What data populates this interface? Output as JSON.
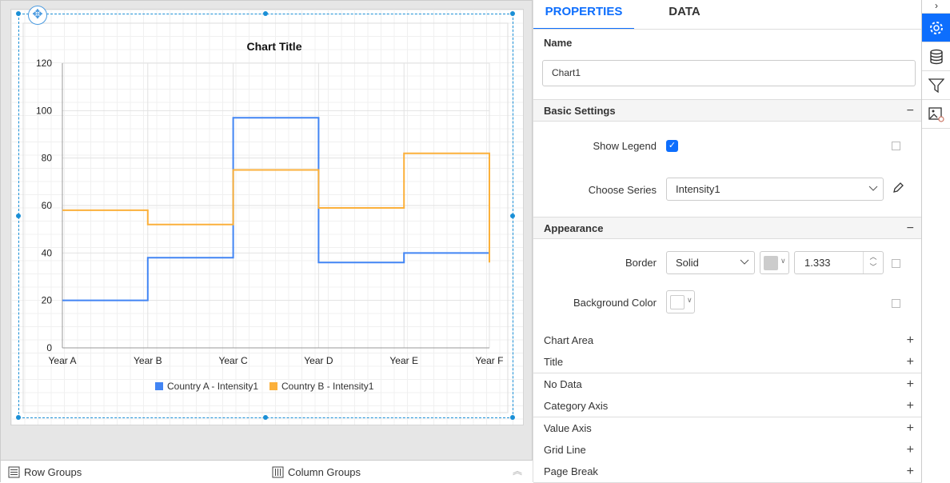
{
  "chart_data": {
    "type": "line",
    "step": true,
    "title": "Chart Title",
    "categories": [
      "Year A",
      "Year B",
      "Year C",
      "Year D",
      "Year E",
      "Year F"
    ],
    "series": [
      {
        "name": "Country A - Intensity1",
        "color": "#4285f4",
        "values": [
          20,
          38,
          97,
          36,
          40,
          40
        ]
      },
      {
        "name": "Country B - Intensity1",
        "color": "#fbb03b",
        "values": [
          58,
          52,
          75,
          59,
          82,
          36
        ]
      }
    ],
    "ylim": [
      0,
      120
    ],
    "yticks": [
      0,
      20,
      40,
      60,
      80,
      100,
      120
    ],
    "grid": true,
    "legend": "bottom"
  },
  "bottom": {
    "row_groups": "Row Groups",
    "column_groups": "Column Groups"
  },
  "panel": {
    "tabs": [
      {
        "label": "PROPERTIES",
        "active": true
      },
      {
        "label": "DATA",
        "active": false
      }
    ],
    "accent": "#0d6efd",
    "name_label": "Name",
    "name_value": "Chart1",
    "basic": {
      "title": "Basic Settings",
      "show_legend_label": "Show Legend",
      "show_legend": true,
      "choose_series_label": "Choose Series",
      "series_value": "Intensity1"
    },
    "appearance": {
      "title": "Appearance",
      "border_label": "Border",
      "border_style": "Solid",
      "border_color": "#cccccc",
      "border_width": "1.333",
      "bg_label": "Background Color",
      "bg_color": "#ffffff"
    },
    "collapsed": [
      "Chart Area",
      "Title",
      "No Data",
      "Category Axis",
      "Value Axis",
      "Grid Line",
      "Page Break"
    ]
  },
  "iconbar": [
    "chevron-right-icon",
    "gear-icon",
    "database-icon",
    "filter-icon",
    "image-settings-icon"
  ]
}
